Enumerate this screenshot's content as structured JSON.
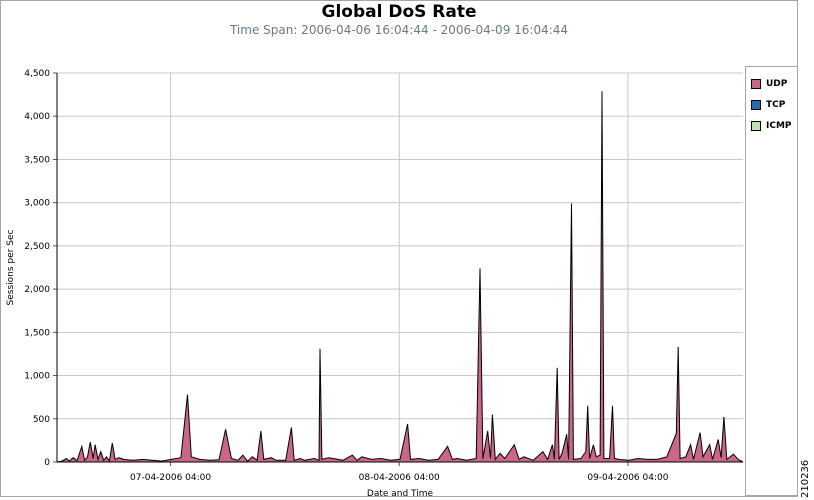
{
  "chart_data": {
    "type": "area",
    "title": "Global DoS Rate",
    "subtitle": "Time Span: 2006-04-06 16:04:44 - 2006-04-09 16:04:44",
    "xlabel": "Date and Time",
    "ylabel": "Sessions per Sec",
    "ylim": [
      0,
      4500
    ],
    "xlim_hours": [
      0,
      72
    ],
    "grid": true,
    "legend_position": "right",
    "y_ticks": [
      "0",
      "500",
      "1,000",
      "1,500",
      "2,000",
      "2,500",
      "3,000",
      "3,500",
      "4,000",
      "4,500"
    ],
    "x_ticks": [
      {
        "label": "07-04-2006 04:00",
        "hour": 11.92
      },
      {
        "label": "08-04-2006 04:00",
        "hour": 35.92
      },
      {
        "label": "09-04-2006 04:00",
        "hour": 59.92
      }
    ],
    "series": [
      {
        "name": "UDP",
        "color": "#cc6688",
        "points": [
          [
            0,
            0
          ],
          [
            0.5,
            10
          ],
          [
            1,
            40
          ],
          [
            1.3,
            10
          ],
          [
            1.7,
            50
          ],
          [
            2.1,
            15
          ],
          [
            2.6,
            180
          ],
          [
            2.9,
            20
          ],
          [
            3.2,
            60
          ],
          [
            3.5,
            230
          ],
          [
            3.8,
            40
          ],
          [
            4.0,
            200
          ],
          [
            4.3,
            30
          ],
          [
            4.6,
            120
          ],
          [
            4.9,
            20
          ],
          [
            5.2,
            60
          ],
          [
            5.5,
            10
          ],
          [
            5.8,
            220
          ],
          [
            6.1,
            30
          ],
          [
            6.5,
            50
          ],
          [
            7,
            30
          ],
          [
            8,
            20
          ],
          [
            9,
            30
          ],
          [
            10,
            20
          ],
          [
            11,
            10
          ],
          [
            12,
            30
          ],
          [
            13,
            50
          ],
          [
            13.7,
            780
          ],
          [
            14.1,
            60
          ],
          [
            15,
            30
          ],
          [
            16,
            20
          ],
          [
            17,
            25
          ],
          [
            17.7,
            380
          ],
          [
            18.3,
            40
          ],
          [
            19,
            20
          ],
          [
            19.5,
            80
          ],
          [
            20,
            10
          ],
          [
            20.5,
            60
          ],
          [
            21,
            20
          ],
          [
            21.4,
            360
          ],
          [
            21.7,
            30
          ],
          [
            22.5,
            50
          ],
          [
            23,
            20
          ],
          [
            24,
            20
          ],
          [
            24.6,
            400
          ],
          [
            24.9,
            20
          ],
          [
            25.5,
            40
          ],
          [
            26,
            20
          ],
          [
            27,
            40
          ],
          [
            27.5,
            20
          ],
          [
            27.6,
            1310
          ],
          [
            27.8,
            30
          ],
          [
            28.5,
            50
          ],
          [
            29,
            40
          ],
          [
            30,
            20
          ],
          [
            31,
            80
          ],
          [
            31.5,
            20
          ],
          [
            32,
            60
          ],
          [
            33,
            30
          ],
          [
            34,
            40
          ],
          [
            35,
            20
          ],
          [
            36,
            30
          ],
          [
            36.8,
            440
          ],
          [
            37.1,
            30
          ],
          [
            38,
            40
          ],
          [
            39,
            20
          ],
          [
            40,
            30
          ],
          [
            41,
            180
          ],
          [
            41.5,
            30
          ],
          [
            42,
            40
          ],
          [
            43,
            20
          ],
          [
            44,
            40
          ],
          [
            44.4,
            2240
          ],
          [
            44.7,
            40
          ],
          [
            45.2,
            360
          ],
          [
            45.5,
            40
          ],
          [
            45.7,
            550
          ],
          [
            46,
            30
          ],
          [
            46.5,
            100
          ],
          [
            47,
            40
          ],
          [
            48,
            200
          ],
          [
            48.5,
            30
          ],
          [
            49,
            60
          ],
          [
            50,
            20
          ],
          [
            51,
            120
          ],
          [
            51.5,
            30
          ],
          [
            52,
            200
          ],
          [
            52.2,
            30
          ],
          [
            52.5,
            1090
          ],
          [
            52.7,
            30
          ],
          [
            53,
            100
          ],
          [
            53.5,
            320
          ],
          [
            53.7,
            30
          ],
          [
            54.0,
            2990
          ],
          [
            54.2,
            30
          ],
          [
            55,
            40
          ],
          [
            55.5,
            120
          ],
          [
            55.7,
            650
          ],
          [
            55.9,
            40
          ],
          [
            56.3,
            200
          ],
          [
            56.6,
            60
          ],
          [
            57,
            80
          ],
          [
            57.2,
            4290
          ],
          [
            57.4,
            40
          ],
          [
            58,
            40
          ],
          [
            58.3,
            650
          ],
          [
            58.5,
            40
          ],
          [
            59,
            30
          ],
          [
            60,
            20
          ],
          [
            61,
            40
          ],
          [
            62,
            30
          ],
          [
            63,
            30
          ],
          [
            64,
            60
          ],
          [
            65,
            330
          ],
          [
            65.2,
            1330
          ],
          [
            65.4,
            40
          ],
          [
            66,
            60
          ],
          [
            66.5,
            200
          ],
          [
            66.8,
            30
          ],
          [
            67.5,
            340
          ],
          [
            67.8,
            60
          ],
          [
            68.5,
            200
          ],
          [
            68.8,
            30
          ],
          [
            69.4,
            260
          ],
          [
            69.7,
            50
          ],
          [
            70,
            520
          ],
          [
            70.3,
            30
          ],
          [
            71,
            90
          ],
          [
            71.5,
            30
          ],
          [
            72,
            0
          ]
        ]
      },
      {
        "name": "TCP",
        "color": "#1f6fb0",
        "points": []
      },
      {
        "name": "ICMP",
        "color": "#b9e6a8",
        "points": []
      }
    ]
  },
  "figure_id": "210236"
}
